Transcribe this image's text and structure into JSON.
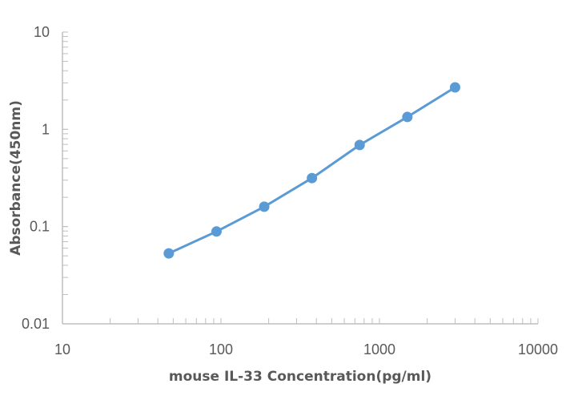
{
  "chart_data": {
    "type": "line",
    "title": "",
    "xlabel": "mouse IL-33 Concentration(pg/ml)",
    "ylabel": "Absorbance(450nm)",
    "xscale": "log",
    "yscale": "log",
    "xlim": [
      10,
      10000
    ],
    "ylim": [
      0.01,
      10
    ],
    "x_tick_labels": [
      "10",
      "100",
      "1000",
      "10000"
    ],
    "y_tick_labels": [
      "10",
      "1",
      "0.1",
      "0.01"
    ],
    "grid": false,
    "legend": null,
    "series": [
      {
        "name": "mouse IL-33",
        "color": "#5b9bd5",
        "marker": "circle",
        "x": [
          46.875,
          93.75,
          187.5,
          375,
          750,
          1500,
          3000
        ],
        "values": [
          0.053,
          0.089,
          0.16,
          0.315,
          0.69,
          1.34,
          2.7
        ]
      }
    ]
  },
  "colors": {
    "axis": "#bfbfbf",
    "text": "#595959",
    "series": "#5b9bd5"
  }
}
